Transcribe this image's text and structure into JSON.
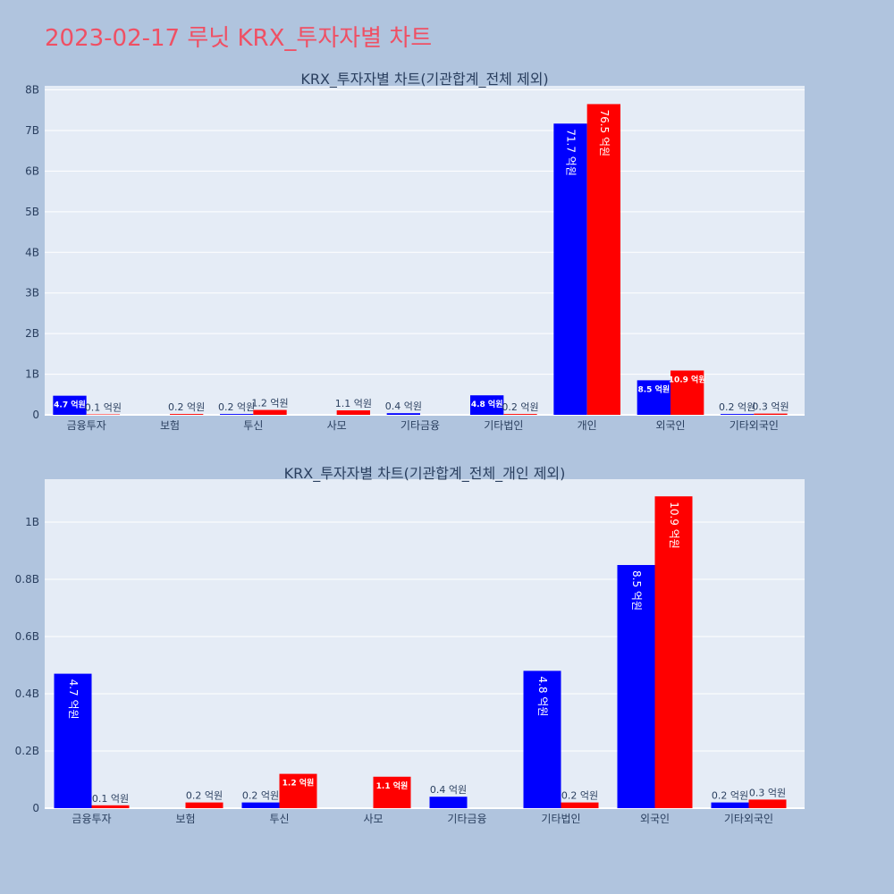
{
  "page_title": "2023-02-17 루닛 KRX_투자자별 차트",
  "colors": {
    "background": "#b0c4de",
    "plot_bg": "#e5ecf6",
    "title": "#ef5064",
    "buy": "#0000ff",
    "sell": "#ff0000",
    "text": "#2a3f5f"
  },
  "chart_data": [
    {
      "type": "bar",
      "title": "KRX_투자자별 차트(기관합계_전체 제외)",
      "categories": [
        "금융투자",
        "보험",
        "투신",
        "사모",
        "기타금융",
        "기타법인",
        "개인",
        "외국인",
        "기타외국인"
      ],
      "series": [
        {
          "color": "#0000ff",
          "values": [
            470000000,
            null,
            20000000,
            null,
            40000000,
            480000000,
            7170000000,
            850000000,
            20000000
          ],
          "labels": [
            "4.7 억원",
            "",
            "0.2 억원",
            "",
            "0.4 억원",
            "4.8 억원",
            "71.7 억원",
            "8.5 억원",
            "0.2 억원"
          ]
        },
        {
          "color": "#ff0000",
          "values": [
            10000000,
            20000000,
            120000000,
            110000000,
            null,
            20000000,
            7650000000,
            1090000000,
            30000000
          ],
          "labels": [
            "0.1 억원",
            "0.2 억원",
            "1.2 억원",
            "1.1 억원",
            "",
            "0.2 억원",
            "76.5 억원",
            "10.9 억원",
            "0.3 억원"
          ]
        }
      ],
      "yticks": [
        0,
        1000000000,
        2000000000,
        3000000000,
        4000000000,
        5000000000,
        6000000000,
        7000000000,
        8000000000
      ],
      "ytick_labels": [
        "0",
        "1B",
        "2B",
        "3B",
        "4B",
        "5B",
        "6B",
        "7B",
        "8B"
      ],
      "ylim": [
        0,
        8100000000
      ]
    },
    {
      "type": "bar",
      "title": "KRX_투자자별 차트(기관합계_전체_개인 제외)",
      "categories": [
        "금융투자",
        "보험",
        "투신",
        "사모",
        "기타금융",
        "기타법인",
        "외국인",
        "기타외국인"
      ],
      "series": [
        {
          "color": "#0000ff",
          "values": [
            470000000,
            null,
            20000000,
            null,
            40000000,
            480000000,
            850000000,
            20000000
          ],
          "labels": [
            "4.7 억원",
            "",
            "0.2 억원",
            "",
            "0.4 억원",
            "4.8 억원",
            "8.5 억원",
            "0.2 억원"
          ]
        },
        {
          "color": "#ff0000",
          "values": [
            10000000,
            20000000,
            120000000,
            110000000,
            null,
            20000000,
            1090000000,
            30000000
          ],
          "labels": [
            "0.1 억원",
            "0.2 억원",
            "1.2 억원",
            "1.1 억원",
            "",
            "0.2 억원",
            "10.9 억원",
            "0.3 억원"
          ]
        }
      ],
      "yticks": [
        0,
        200000000,
        400000000,
        600000000,
        800000000,
        1000000000
      ],
      "ytick_labels": [
        "0",
        "0.2B",
        "0.4B",
        "0.6B",
        "0.8B",
        "1B"
      ],
      "ylim": [
        0,
        1150000000
      ]
    }
  ]
}
